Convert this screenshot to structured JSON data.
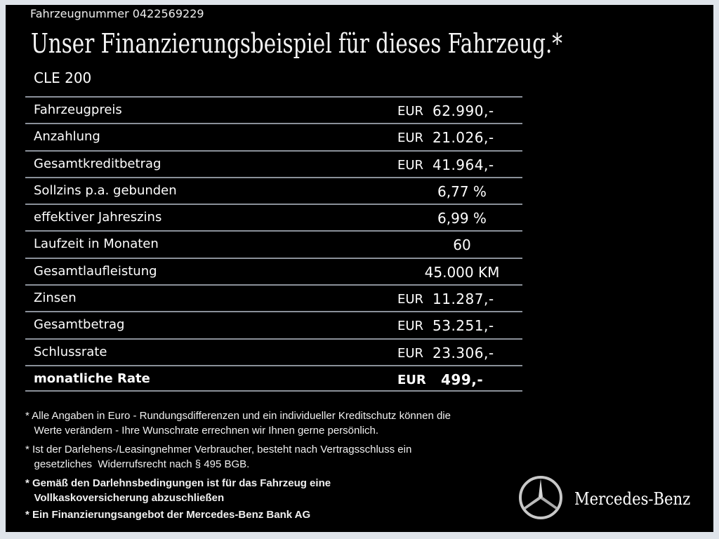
{
  "vehicle_number": "Fahrzeugnummer  0422569229",
  "title": "Unser Finanzierungsbeispiel für dieses Fahrzeug.*",
  "model": "CLE 200",
  "rows": [
    {
      "label": "Fahrzeugpreis",
      "currency": "EUR",
      "value": "62.990,-"
    },
    {
      "label": "Anzahlung",
      "currency": "EUR",
      "value": "21.026,-"
    },
    {
      "label": "Gesamtkreditbetrag",
      "currency": "EUR",
      "value": "41.964,-"
    },
    {
      "label": "Sollzins p.a. gebunden",
      "value": "6,77 %"
    },
    {
      "label": "effektiver Jahreszins",
      "value": "6,99 %"
    },
    {
      "label": "Laufzeit in Monaten",
      "value": "60"
    },
    {
      "label": "Gesamtlaufleistung",
      "value": "45.000 KM"
    },
    {
      "label": "Zinsen",
      "currency": "EUR",
      "value": "11.287,-"
    },
    {
      "label": "Gesamtbetrag",
      "currency": "EUR",
      "value": "53.251,-"
    },
    {
      "label": "Schlussrate",
      "currency": "EUR",
      "value": "23.306,-"
    },
    {
      "label": "monatliche Rate",
      "currency": "EUR",
      "value": "499,-"
    }
  ],
  "footnotes": [
    [
      "* Alle Angaben in Euro - Rundungsdifferenzen und ein individueller Kreditschutz können die",
      "   Werte verändern - Ihre Wunschrate errechnen wir Ihnen gerne persönlich."
    ],
    [
      "* Ist der Darlehens-/Leasingnehmer Verbraucher, besteht nach Vertragsschluss ein",
      "   gesetzliches  Widerrufsrecht nach § 495 BGB."
    ],
    [
      "* Gemäß den Darlehnsbedingungen ist für das Fahrzeug eine",
      "   Vollkaskoversicherung abzuschließen"
    ],
    [
      "* Ein Finanzierungsangebot der Mercedes-Benz Bank AG"
    ]
  ],
  "brand": "Mercedes-Benz",
  "colors": {
    "background": "#000000",
    "divider": "#8a9099",
    "frame": "#dfe4ea"
  }
}
